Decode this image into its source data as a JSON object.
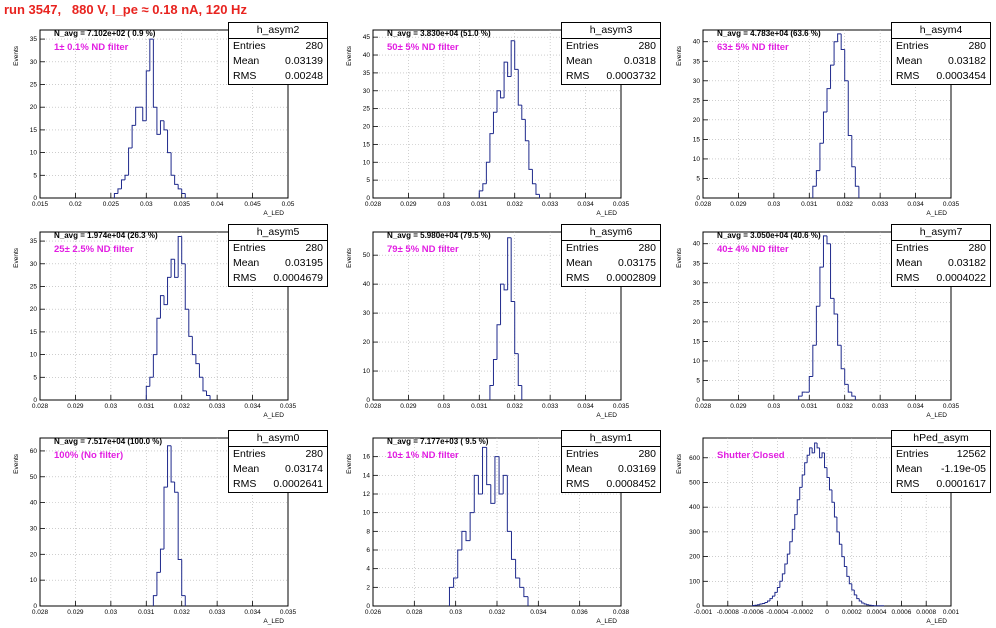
{
  "page_title": "run 3547,   880 V, I_pe ≈ 0.18 nA, 120 Hz",
  "colors": {
    "title": "#e8231f",
    "histogram_line": "#1f2a8c",
    "annotation": "#e21fe2",
    "grid": "#b0b0b0"
  },
  "chart_data": [
    {
      "type": "bar",
      "name": "h_asym2",
      "navg": "N_avg = 7.102e+02 ( 0.9 %)",
      "filter": "1± 0.1% ND filter",
      "stats": {
        "entries": "280",
        "mean": "0.03139",
        "rms": "0.00248"
      },
      "xlabel": "A_LED",
      "ylabel": "Events",
      "xlim": [
        0.015,
        0.05
      ],
      "ylim": [
        0,
        37
      ],
      "xticks": [
        "0.015",
        "0.02",
        "0.025",
        "0.03",
        "0.035",
        "0.04",
        "0.045",
        "0.05"
      ],
      "yticks": [
        "0",
        "5",
        "10",
        "15",
        "20",
        "25",
        "30",
        "35"
      ],
      "hist": {
        "x0": 0.0255,
        "dx": 0.0005,
        "values": [
          1,
          2,
          4,
          5,
          11,
          16,
          20,
          20,
          17,
          28,
          35,
          20,
          14,
          17,
          15,
          10,
          5,
          3,
          2,
          1
        ]
      }
    },
    {
      "type": "bar",
      "name": "h_asym3",
      "navg": "N_avg = 3.830e+04 (51.0 %)",
      "filter": "50± 5% ND filter",
      "stats": {
        "entries": "280",
        "mean": "0.0318",
        "rms": "0.0003732"
      },
      "xlabel": "A_LED",
      "ylabel": "Events",
      "xlim": [
        0.028,
        0.035
      ],
      "ylim": [
        0,
        47
      ],
      "xticks": [
        "0.028",
        "0.029",
        "0.03",
        "0.031",
        "0.032",
        "0.033",
        "0.034",
        "0.035"
      ],
      "yticks": [
        "0",
        "5",
        "10",
        "15",
        "20",
        "25",
        "30",
        "35",
        "40",
        "45"
      ],
      "hist": {
        "x0": 0.031,
        "dx": 0.0001,
        "values": [
          2,
          4,
          10,
          18,
          24,
          30,
          28,
          38,
          34,
          44,
          36,
          26,
          22,
          16,
          8,
          4,
          1
        ]
      }
    },
    {
      "type": "bar",
      "name": "h_asym4",
      "navg": "N_avg = 4.783e+04 (63.6 %)",
      "filter": "63± 5% ND filter",
      "stats": {
        "entries": "280",
        "mean": "0.03182",
        "rms": "0.0003454"
      },
      "xlabel": "A_LED",
      "ylabel": "Events",
      "xlim": [
        0.028,
        0.035
      ],
      "ylim": [
        0,
        43
      ],
      "xticks": [
        "0.028",
        "0.029",
        "0.03",
        "0.031",
        "0.032",
        "0.033",
        "0.034",
        "0.035"
      ],
      "yticks": [
        "0",
        "5",
        "10",
        "15",
        "20",
        "25",
        "30",
        "35",
        "40"
      ],
      "hist": {
        "x0": 0.0311,
        "dx": 0.0001,
        "values": [
          3,
          7,
          14,
          22,
          28,
          34,
          40,
          42,
          38,
          30,
          16,
          8,
          3
        ]
      }
    },
    {
      "type": "bar",
      "name": "h_asym5",
      "navg": "N_avg = 1.974e+04 (26.3 %)",
      "filter": "25± 2.5% ND filter",
      "stats": {
        "entries": "280",
        "mean": "0.03195",
        "rms": "0.0004679"
      },
      "xlabel": "A_LED",
      "ylabel": "Events",
      "xlim": [
        0.028,
        0.035
      ],
      "ylim": [
        0,
        37
      ],
      "xticks": [
        "0.028",
        "0.029",
        "0.03",
        "0.031",
        "0.032",
        "0.033",
        "0.034",
        "0.035"
      ],
      "yticks": [
        "0",
        "5",
        "10",
        "15",
        "20",
        "25",
        "30",
        "35"
      ],
      "hist": {
        "x0": 0.031,
        "dx": 0.0001,
        "values": [
          3,
          5,
          10,
          18,
          23,
          21,
          27,
          31,
          27,
          36,
          30,
          20,
          14,
          10,
          8,
          5,
          2,
          1
        ]
      }
    },
    {
      "type": "bar",
      "name": "h_asym6",
      "navg": "N_avg = 5.980e+04 (79.5 %)",
      "filter": "79± 5% ND filter",
      "stats": {
        "entries": "280",
        "mean": "0.03175",
        "rms": "0.0002809"
      },
      "xlabel": "A_LED",
      "ylabel": "Events",
      "xlim": [
        0.028,
        0.035
      ],
      "ylim": [
        0,
        58
      ],
      "xticks": [
        "0.028",
        "0.029",
        "0.03",
        "0.031",
        "0.032",
        "0.033",
        "0.034",
        "0.035"
      ],
      "yticks": [
        "0",
        "10",
        "20",
        "30",
        "40",
        "50"
      ],
      "hist": {
        "x0": 0.0313,
        "dx": 0.0001,
        "values": [
          5,
          14,
          26,
          40,
          38,
          56,
          34,
          16,
          5
        ]
      }
    },
    {
      "type": "bar",
      "name": "h_asym7",
      "navg": "N_avg = 3.050e+04 (40.6 %)",
      "filter": "40± 4% ND filter",
      "stats": {
        "entries": "280",
        "mean": "0.03182",
        "rms": "0.0004022"
      },
      "xlabel": "A_LED",
      "ylabel": "Events",
      "xlim": [
        0.028,
        0.035
      ],
      "ylim": [
        0,
        43
      ],
      "xticks": [
        "0.028",
        "0.029",
        "0.03",
        "0.031",
        "0.032",
        "0.033",
        "0.034",
        "0.035"
      ],
      "yticks": [
        "0",
        "5",
        "10",
        "15",
        "20",
        "25",
        "30",
        "35",
        "40"
      ],
      "hist": {
        "x0": 0.0307,
        "dx": 0.0001,
        "values": [
          1,
          2,
          2,
          6,
          14,
          24,
          34,
          42,
          40,
          26,
          22,
          14,
          8,
          4,
          2,
          1
        ]
      }
    },
    {
      "type": "bar",
      "name": "h_asym0",
      "navg": "N_avg = 7.517e+04 (100.0 %)",
      "filter": "100% (No filter)",
      "stats": {
        "entries": "280",
        "mean": "0.03174",
        "rms": "0.0002641"
      },
      "xlabel": "A_LED",
      "ylabel": "Events",
      "xlim": [
        0.028,
        0.035
      ],
      "ylim": [
        0,
        65
      ],
      "xticks": [
        "0.028",
        "0.029",
        "0.03",
        "0.031",
        "0.032",
        "0.033",
        "0.034",
        "0.035"
      ],
      "yticks": [
        "0",
        "10",
        "20",
        "30",
        "40",
        "50",
        "60"
      ],
      "hist": {
        "x0": 0.0312,
        "dx": 0.0001,
        "values": [
          4,
          13,
          22,
          46,
          62,
          48,
          44,
          18,
          4
        ]
      }
    },
    {
      "type": "bar",
      "name": "h_asym1",
      "navg": "N_avg = 7.177e+03 ( 9.5 %)",
      "filter": "10± 1% ND filter",
      "stats": {
        "entries": "280",
        "mean": "0.03169",
        "rms": "0.0008452"
      },
      "xlabel": "A_LED",
      "ylabel": "Events",
      "xlim": [
        0.026,
        0.038
      ],
      "ylim": [
        0,
        18
      ],
      "xticks": [
        "0.026",
        "0.028",
        "0.03",
        "0.032",
        "0.034",
        "0.036",
        "0.038"
      ],
      "yticks": [
        "0",
        "2",
        "4",
        "6",
        "8",
        "10",
        "12",
        "14",
        "16"
      ],
      "hist": {
        "x0": 0.0297,
        "dx": 0.0002,
        "values": [
          2,
          3,
          6,
          8,
          7,
          10,
          14,
          12,
          17,
          13,
          11,
          16,
          12,
          14,
          8,
          5,
          3,
          2,
          1
        ]
      }
    },
    {
      "type": "bar",
      "name": "hPed_asym",
      "navg": "",
      "filter": "Shutter Closed",
      "stats": {
        "entries": "12562",
        "mean": "-1.19e-05",
        "rms": "0.0001617"
      },
      "xlabel": "A_LED",
      "ylabel": "Events",
      "xlim": [
        -0.001,
        0.001
      ],
      "ylim": [
        0,
        680
      ],
      "xticks": [
        "-0.001",
        "-0.0008",
        "-0.0006",
        "-0.0004",
        "-0.0002",
        "0",
        "0.0002",
        "0.0004",
        "0.0006",
        "0.0008",
        "0.001"
      ],
      "yticks": [
        "0",
        "100",
        "200",
        "300",
        "400",
        "500",
        "600"
      ],
      "hist": {
        "x0": -0.0006,
        "dx": 2e-05,
        "values": [
          2,
          3,
          5,
          8,
          10,
          14,
          20,
          30,
          40,
          55,
          75,
          100,
          130,
          170,
          210,
          260,
          310,
          370,
          430,
          480,
          530,
          580,
          610,
          640,
          620,
          660,
          640,
          600,
          620,
          560,
          520,
          470,
          420,
          360,
          300,
          250,
          200,
          160,
          120,
          90,
          65,
          45,
          30,
          20,
          12,
          8,
          5,
          3,
          2,
          1,
          1,
          1,
          1
        ]
      }
    }
  ],
  "stat_labels": {
    "entries": "Entries",
    "mean": "Mean",
    "rms": "RMS"
  }
}
